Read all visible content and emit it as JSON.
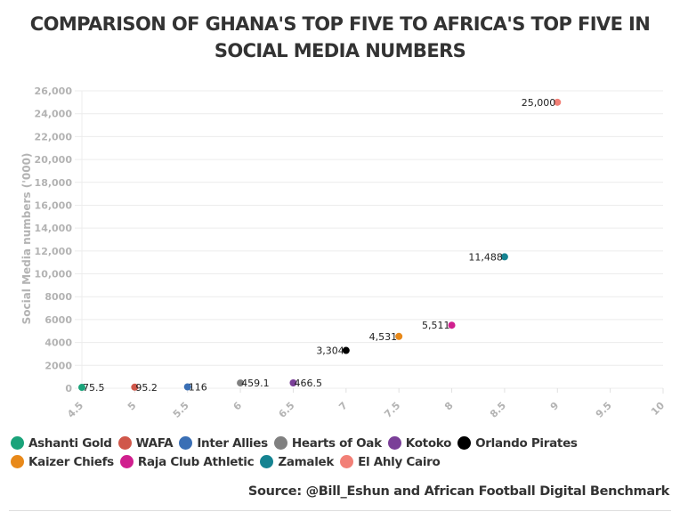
{
  "chart_data": {
    "type": "scatter",
    "title": "COMPARISON OF GHANA'S TOP FIVE TO AFRICA'S TOP FIVE IN SOCIAL MEDIA NUMBERS",
    "title_lines": [
      "COMPARISON OF GHANA'S TOP FIVE TO AFRICA'S TOP FIVE IN",
      "SOCIAL MEDIA NUMBERS"
    ],
    "xlabel": "",
    "ylabel": "Social Media numbers ('000)",
    "xlim": [
      4.5,
      10
    ],
    "ylim": [
      0,
      26000
    ],
    "x_ticks": [
      "4.5",
      "5",
      "5.5",
      "6",
      "6.5",
      "7",
      "7.5",
      "8",
      "8.5",
      "9",
      "9.5",
      "10"
    ],
    "x_tick_values": [
      4.5,
      5,
      5.5,
      6,
      6.5,
      7,
      7.5,
      8,
      8.5,
      9,
      9.5,
      10
    ],
    "y_ticks": [
      "0",
      "2000",
      "4000",
      "6000",
      "8000",
      "10,000",
      "12,000",
      "14,000",
      "16,000",
      "18,000",
      "20,000",
      "22,000",
      "24,000",
      "26,000"
    ],
    "y_tick_values": [
      0,
      2000,
      4000,
      6000,
      8000,
      10000,
      12000,
      14000,
      16000,
      18000,
      20000,
      22000,
      24000,
      26000
    ],
    "grid": true,
    "legend_position": "bottom",
    "series": [
      {
        "name": "Ashanti Gold",
        "color": "#1aa37a",
        "x": 4.5,
        "y": 75.5,
        "label": "75.5",
        "label_side": "right"
      },
      {
        "name": "WAFA",
        "color": "#d0574a",
        "x": 5,
        "y": 95.2,
        "label": "95.2",
        "label_side": "right"
      },
      {
        "name": "Inter Allies",
        "color": "#3a6fb5",
        "x": 5.5,
        "y": 116,
        "label": "116",
        "label_side": "right"
      },
      {
        "name": "Hearts of Oak",
        "color": "#808080",
        "x": 6,
        "y": 459.1,
        "label": "459.1",
        "label_side": "right"
      },
      {
        "name": "Kotoko",
        "color": "#7a3f98",
        "x": 6.5,
        "y": 466.5,
        "label": "466.5",
        "label_side": "right"
      },
      {
        "name": "Orlando Pirates",
        "color": "#000000",
        "x": 7,
        "y": 3304,
        "label": "3,304",
        "label_side": "left"
      },
      {
        "name": "Kaizer Chiefs",
        "color": "#e8891a",
        "x": 7.5,
        "y": 4531,
        "label": "4,531",
        "label_side": "left"
      },
      {
        "name": "Raja Club Athletic",
        "color": "#d01f8e",
        "x": 8,
        "y": 5511,
        "label": "5,511",
        "label_side": "left"
      },
      {
        "name": "Zamalek",
        "color": "#158391",
        "x": 8.5,
        "y": 11488,
        "label": "11,488",
        "label_side": "left"
      },
      {
        "name": "El Ahly Cairo",
        "color": "#f28077",
        "x": 9,
        "y": 25000,
        "label": "25,000",
        "label_side": "left"
      }
    ]
  },
  "legend": {
    "rows": [
      [
        0,
        1,
        2,
        3,
        4,
        5
      ],
      [
        6,
        7,
        8,
        9
      ]
    ]
  },
  "source": "Source: @Bill_Eshun and African Football Digital Benchmark"
}
